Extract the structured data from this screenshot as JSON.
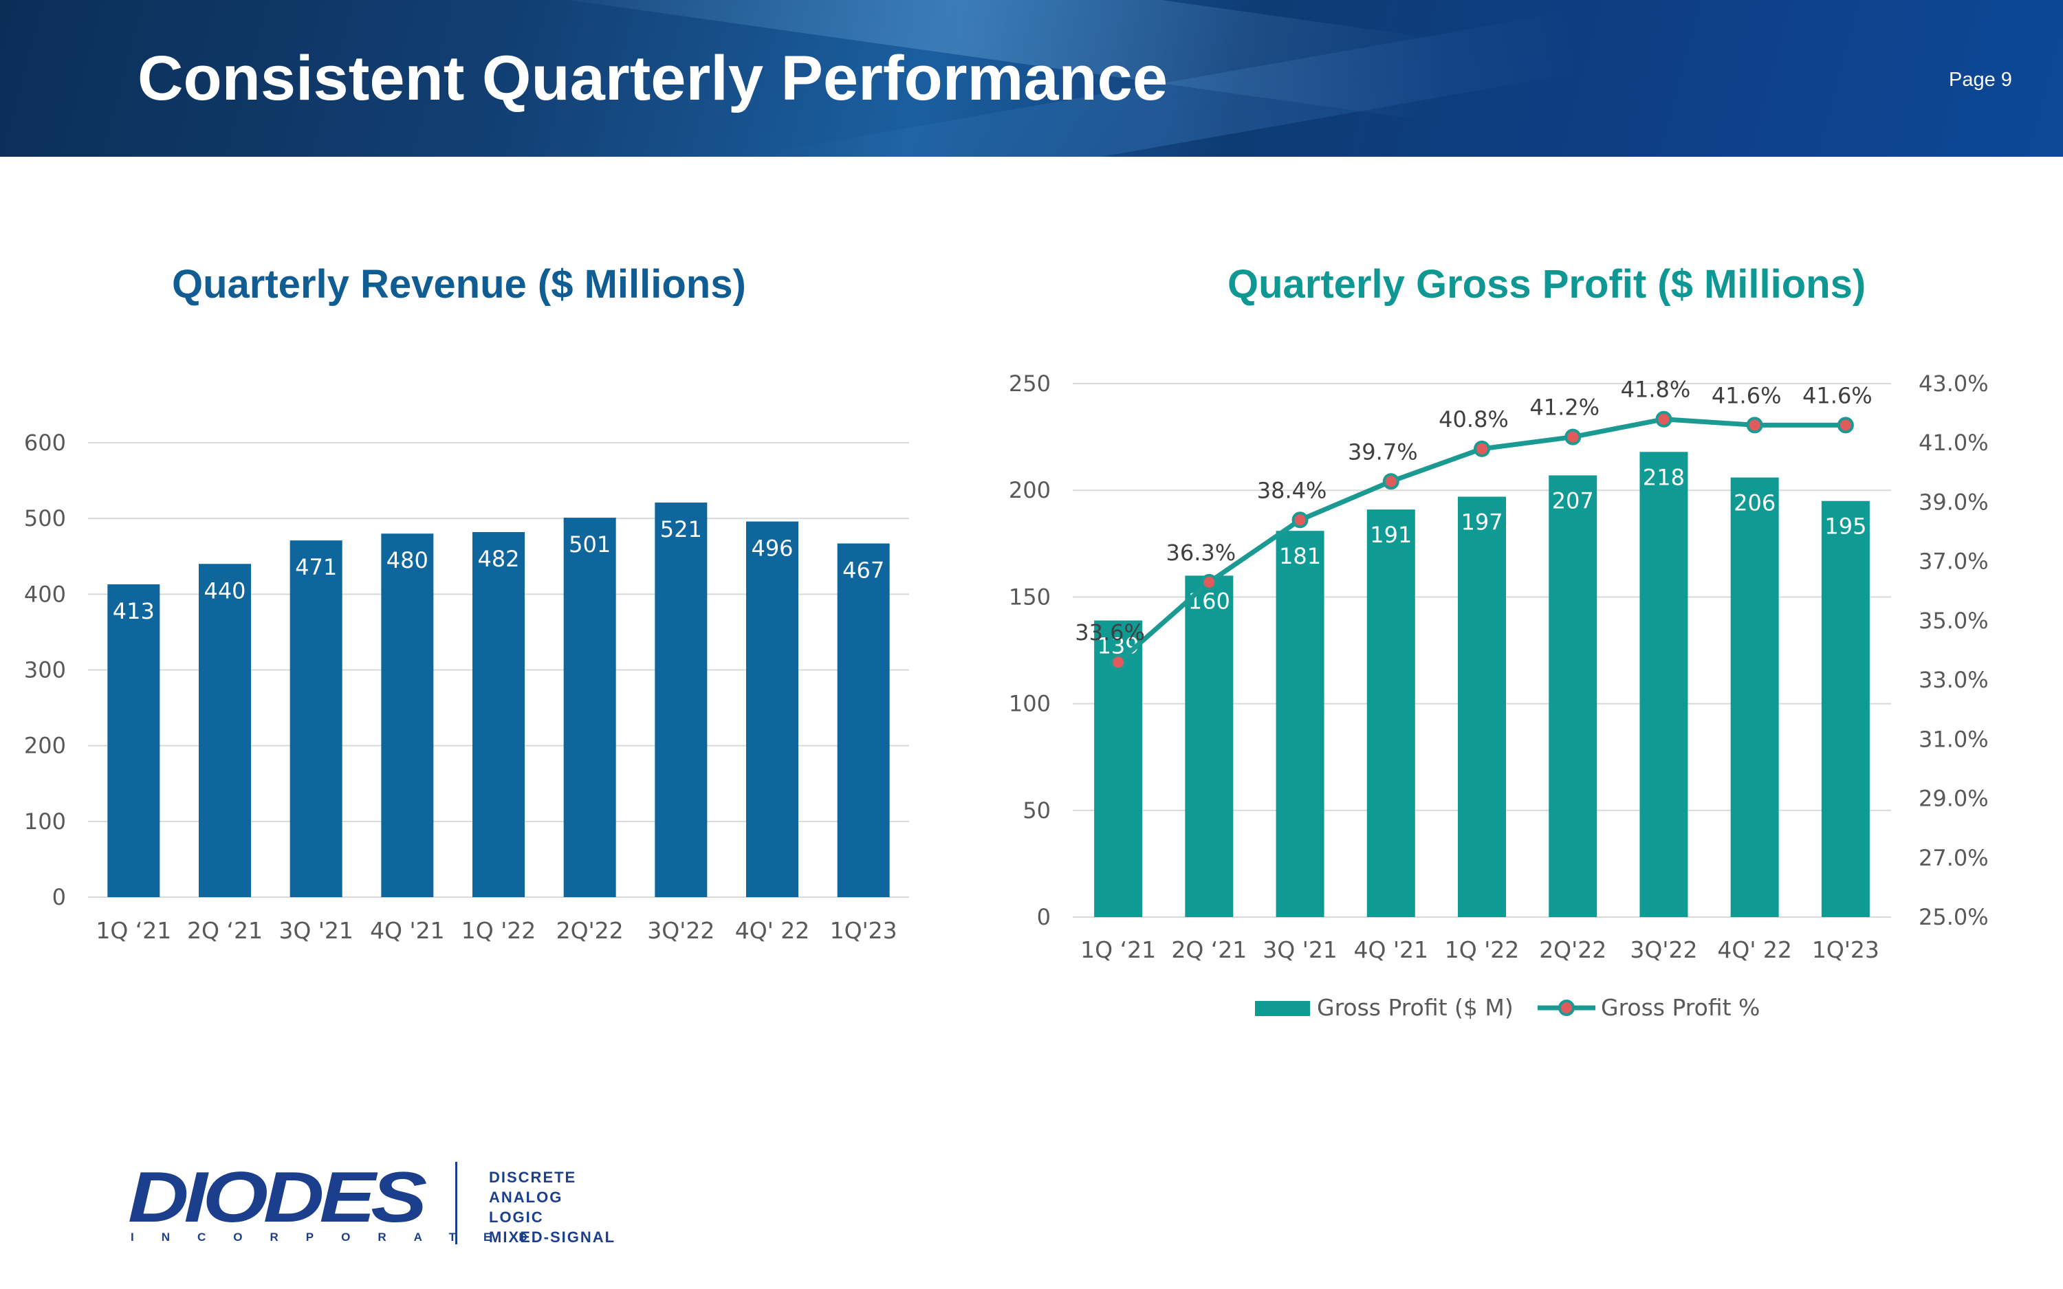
{
  "header": {
    "title": "Consistent Quarterly Performance",
    "page_label": "Page 9"
  },
  "colors": {
    "banner": "#123f73",
    "revenue_bar": "#0e669c",
    "gross_profit_bar": "#0f9b94",
    "gp_line": "#1a9a92",
    "gp_marker": "#e05b5b",
    "gridline": "#d9d9d9"
  },
  "chart_data": [
    {
      "type": "bar",
      "title": "Quarterly Revenue ($ Millions)",
      "categories": [
        "1Q ‘21",
        "2Q ‘21",
        "3Q '21",
        "4Q '21",
        "1Q '22",
        "2Q'22",
        "3Q'22",
        "4Q' 22",
        "1Q'23"
      ],
      "values": [
        413,
        440,
        471,
        480,
        482,
        501,
        521,
        496,
        467
      ],
      "value_labels": [
        "413",
        "440",
        "471",
        "480",
        "482",
        "501",
        "521",
        "496",
        "467"
      ],
      "ylim": [
        0,
        600
      ],
      "yticks": [
        "0",
        "100",
        "200",
        "300",
        "400",
        "500",
        "600"
      ],
      "xlabel": "",
      "ylabel": "",
      "grid": true
    },
    {
      "type": "bar+line",
      "title": "Quarterly Gross Profit ($ Millions)",
      "categories": [
        "1Q ‘21",
        "2Q ‘21",
        "3Q '21",
        "4Q '21",
        "1Q '22",
        "2Q'22",
        "3Q'22",
        "4Q' 22",
        "1Q'23"
      ],
      "series": [
        {
          "name": "Gross Profit ($ M)",
          "kind": "bar",
          "axis": "left",
          "values": [
            139,
            160,
            181,
            191,
            197,
            207,
            218,
            206,
            195
          ],
          "value_labels": [
            "139",
            "160",
            "181",
            "191",
            "197",
            "207",
            "218",
            "206",
            "195"
          ]
        },
        {
          "name": "Gross Profit %",
          "kind": "line",
          "axis": "right",
          "values": [
            33.6,
            36.3,
            38.4,
            39.7,
            40.8,
            41.2,
            41.8,
            41.6,
            41.6
          ],
          "value_labels": [
            "33.6%",
            "36.3%",
            "38.4%",
            "39.7%",
            "40.8%",
            "41.2%",
            "41.8%",
            "41.6%",
            "41.6%"
          ]
        }
      ],
      "ylim_left": [
        0,
        250
      ],
      "yticks_left": [
        "0",
        "50",
        "100",
        "150",
        "200",
        "250"
      ],
      "ylim_right": [
        25.0,
        43.0
      ],
      "yticks_right": [
        "25.0%",
        "27.0%",
        "29.0%",
        "31.0%",
        "33.0%",
        "35.0%",
        "37.0%",
        "39.0%",
        "41.0%",
        "43.0%"
      ],
      "legend": [
        "Gross Profit ($ M)",
        "Gross Profit %"
      ],
      "legend_position": "bottom",
      "grid": true
    }
  ],
  "footer_logo": {
    "wordmark": "DIODES",
    "subtext": "INCORPORATED",
    "tagline": [
      "DISCRETE",
      "ANALOG",
      "LOGIC",
      "MIXED-SIGNAL"
    ]
  }
}
